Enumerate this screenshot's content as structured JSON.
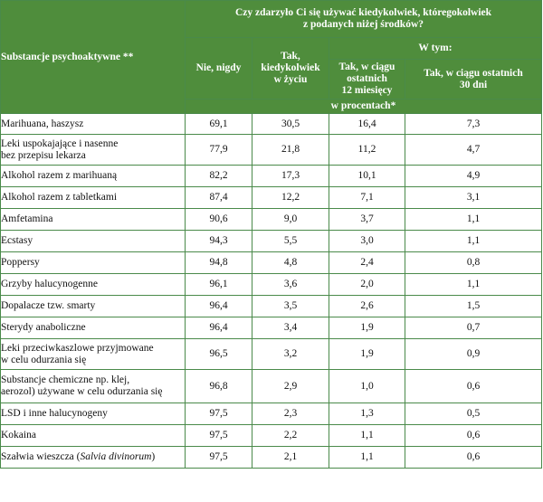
{
  "header": {
    "substance_col": "Substancje psychoaktywne **",
    "question_line1": "Czy zdarzyło Ci się używać kiedykolwiek, któregokolwiek",
    "question_line2": "z podanych niżej środków?",
    "never": "Nie, nigdy",
    "ever_line1": "Tak,",
    "ever_line2": "kiedykolwiek",
    "ever_line3": "w życiu",
    "of_which": "W tym:",
    "last12_line1": "Tak, w ciągu",
    "last12_line2": "ostatnich",
    "last12_line3": "12 miesięcy",
    "last30_line1": "Tak, w ciągu ostatnich",
    "last30_line2": "30 dni",
    "unit": "w procentach*"
  },
  "rows": [
    {
      "name_1": "Marihuana, haszysz",
      "never": "69,1",
      "ever": "30,5",
      "last12": "16,4",
      "last30": "7,3"
    },
    {
      "name_1": "Leki uspokajające i nasenne",
      "name_2": "bez przepisu lekarza",
      "never": "77,9",
      "ever": "21,8",
      "last12": "11,2",
      "last30": "4,7"
    },
    {
      "name_1": "Alkohol razem z marihuaną",
      "never": "82,2",
      "ever": "17,3",
      "last12": "10,1",
      "last30": "4,9"
    },
    {
      "name_1": "Alkohol razem z tabletkami",
      "never": "87,4",
      "ever": "12,2",
      "last12": "7,1",
      "last30": "3,1"
    },
    {
      "name_1": "Amfetamina",
      "never": "90,6",
      "ever": "9,0",
      "last12": "3,7",
      "last30": "1,1"
    },
    {
      "name_1": "Ecstasy",
      "never": "94,3",
      "ever": "5,5",
      "last12": "3,0",
      "last30": "1,1"
    },
    {
      "name_1": "Poppersy",
      "never": "94,8",
      "ever": "4,8",
      "last12": "2,4",
      "last30": "0,8"
    },
    {
      "name_1": "Grzyby halucynogenne",
      "never": "96,1",
      "ever": "3,6",
      "last12": "2,0",
      "last30": "1,1"
    },
    {
      "name_1": "Dopalacze tzw. smarty",
      "never": "96,4",
      "ever": "3,5",
      "last12": "2,6",
      "last30": "1,5"
    },
    {
      "name_1": "Sterydy anaboliczne",
      "never": "96,4",
      "ever": "3,4",
      "last12": "1,9",
      "last30": "0,7"
    },
    {
      "name_1": "Leki przeciwkaszlowe przyjmowane",
      "name_2": "w celu odurzania się",
      "never": "96,5",
      "ever": "3,2",
      "last12": "1,9",
      "last30": "0,9"
    },
    {
      "name_1": "Substancje chemiczne np. klej,",
      "name_2": "aerozol) używane w celu odurzania się",
      "never": "96,8",
      "ever": "2,9",
      "last12": "1,0",
      "last30": "0,6"
    },
    {
      "name_1": "LSD i inne halucynogeny",
      "never": "97,5",
      "ever": "2,3",
      "last12": "1,3",
      "last30": "0,5"
    },
    {
      "name_1": "Kokaina",
      "never": "97,5",
      "ever": "2,2",
      "last12": "1,1",
      "last30": "0,6"
    },
    {
      "name_1": "Szałwia wieszcza (",
      "name_italic": "Salvia divinorum",
      "name_tail": ")",
      "never": "97,5",
      "ever": "2,1",
      "last12": "1,1",
      "last30": "0,6"
    }
  ]
}
